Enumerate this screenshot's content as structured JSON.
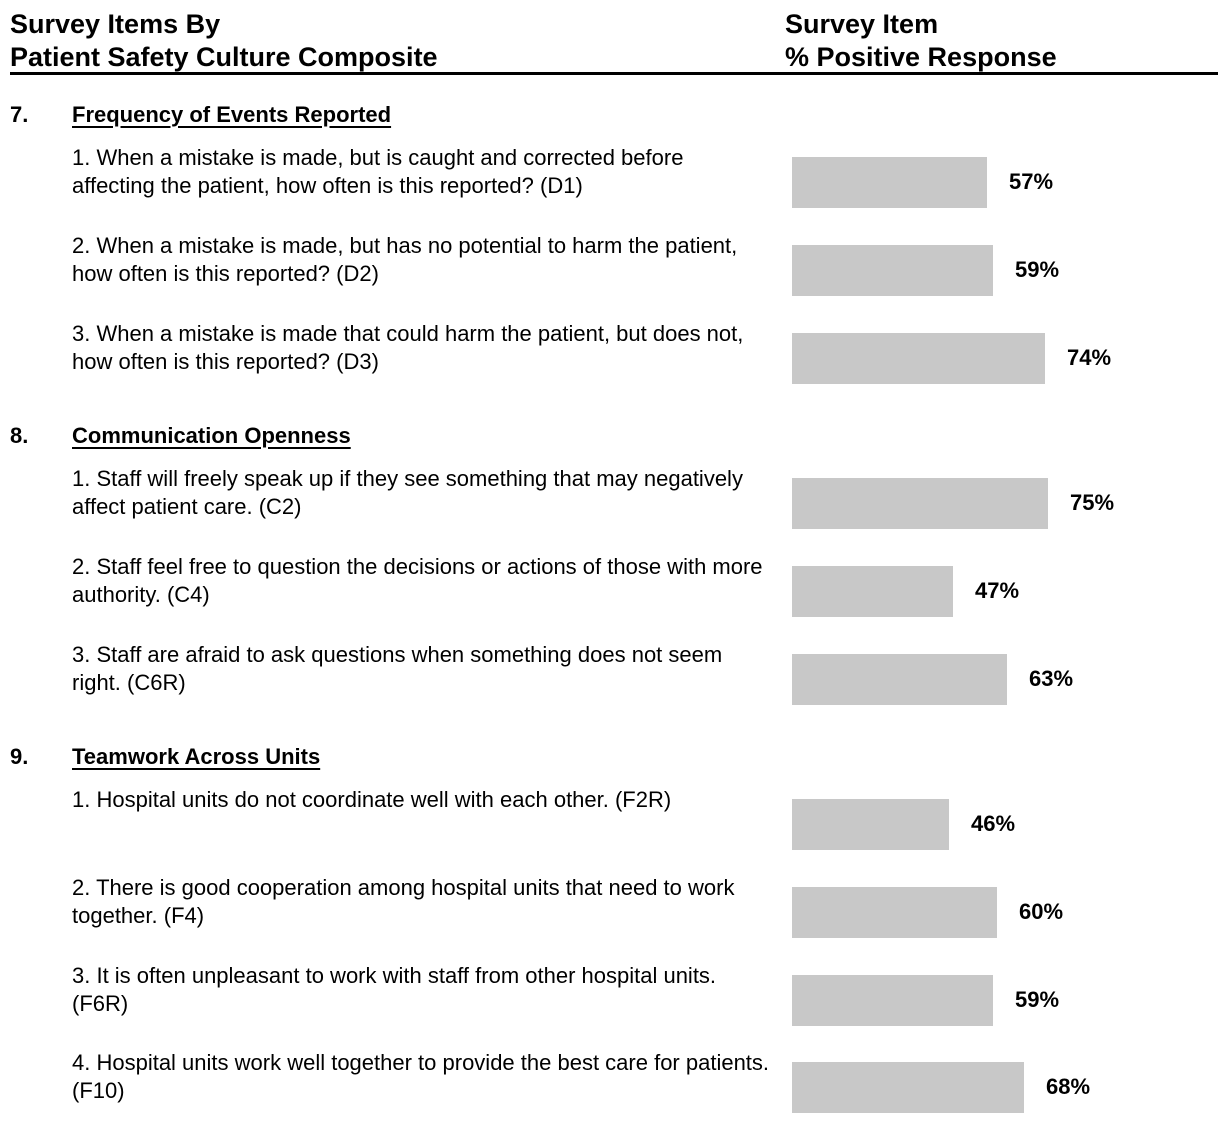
{
  "header": {
    "left_line1": "Survey Items By",
    "left_line2": "Patient Safety Culture Composite",
    "right_line1": "Survey Item",
    "right_line2": "% Positive Response"
  },
  "colors": {
    "bar": "#c8c8c8",
    "text": "#000000"
  },
  "chart_data": {
    "type": "bar",
    "orientation": "horizontal",
    "ylabel": "% Positive Response",
    "value_unit": "%",
    "xlim": [
      0,
      100
    ],
    "grid": false,
    "groups": [
      {
        "number": "7.",
        "title": "Frequency of Events Reported",
        "items": [
          {
            "text": "1. When a mistake is made, but is caught and corrected before affecting the patient, how often is this reported? (D1)",
            "value": 57,
            "label": "57%"
          },
          {
            "text": "2. When a mistake is made, but has no potential to harm the patient, how often is this reported? (D2)",
            "value": 59,
            "label": "59%"
          },
          {
            "text": "3. When a mistake is made that could harm the patient, but does not, how often is this reported? (D3)",
            "value": 74,
            "label": "74%"
          }
        ]
      },
      {
        "number": "8.",
        "title": "Communication Openness",
        "items": [
          {
            "text": "1. Staff will freely speak up if they see something that may negatively affect patient care. (C2)",
            "value": 75,
            "label": "75%"
          },
          {
            "text": "2. Staff feel free to question the decisions or actions of those with more authority. (C4)",
            "value": 47,
            "label": "47%"
          },
          {
            "text": "3. Staff are afraid to ask questions when something does not seem right. (C6R)",
            "value": 63,
            "label": "63%"
          }
        ]
      },
      {
        "number": "9.",
        "title": "Teamwork Across Units",
        "items": [
          {
            "text": "1. Hospital units do not coordinate well with each other. (F2R)",
            "value": 46,
            "label": "46%"
          },
          {
            "text": "2. There is good cooperation among hospital units that need to work together. (F4)",
            "value": 60,
            "label": "60%"
          },
          {
            "text": "3. It is often unpleasant to work with staff from other hospital units. (F6R)",
            "value": 59,
            "label": "59%"
          },
          {
            "text": "4. Hospital units work well together to provide the best care for patients. (F10)",
            "value": 68,
            "label": "68%"
          }
        ]
      }
    ]
  }
}
